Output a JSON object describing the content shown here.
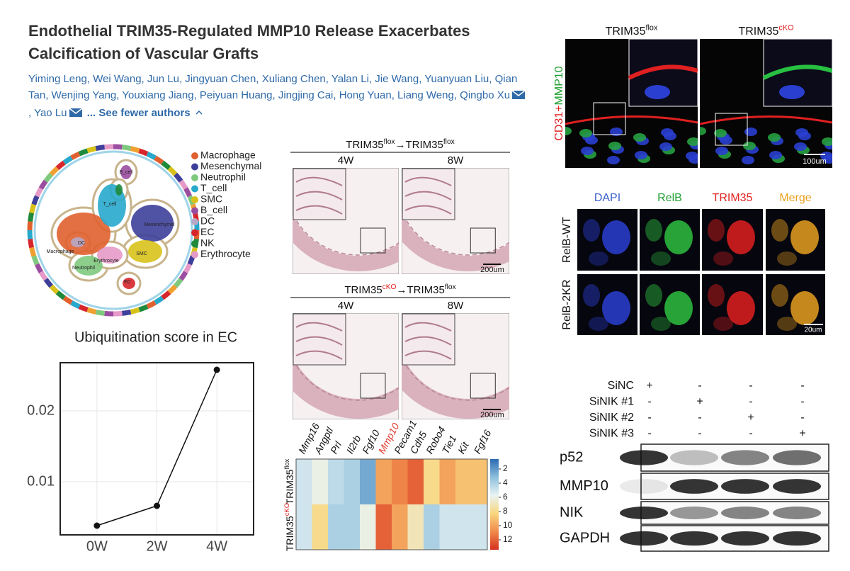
{
  "header": {
    "title": "Endothelial TRIM35-Regulated MMP10 Release Exacerbates Calcification of Vascular Grafts",
    "authors": [
      "Yiming Leng",
      "Wei Wang",
      "Jun Lu",
      "Jingyuan Chen",
      "Xuliang Chen",
      "Yalan Li",
      "Jie Wang",
      "Yuanyuan Liu",
      "Qian Tan",
      "Wenjing Yang",
      "Youxiang Jiang",
      "Peiyuan Huang",
      "Jingjing Cai",
      "Hong Yuan",
      "Liang Weng",
      "Qingbo Xu",
      "Yao Lu"
    ],
    "separator": ",",
    "toggle": "... See fewer authors"
  },
  "umap": {
    "legend": [
      {
        "label": "Macrophage",
        "color": "#e0612f"
      },
      {
        "label": "Mesenchymal",
        "color": "#3d3f9a"
      },
      {
        "label": "Neutrophil",
        "color": "#7fc97f"
      },
      {
        "label": "T_cell",
        "color": "#27a9cc"
      },
      {
        "label": "SMC",
        "color": "#d8c21a"
      },
      {
        "label": "B_cell",
        "color": "#9b4ea0"
      },
      {
        "label": "DC",
        "color": "#b8a8c8"
      },
      {
        "label": "EC",
        "color": "#d7262b"
      },
      {
        "label": "NK",
        "color": "#1f8a3c"
      },
      {
        "label": "Erythrocyte",
        "color": "#e59ac8"
      }
    ],
    "cluster_labels": [
      "T_cell",
      "B_cell",
      "Macrophage",
      "DC",
      "Mesenchymal",
      "Erythrocyte",
      "Neutrophil",
      "SMC",
      "EC"
    ]
  },
  "chart_data": [
    {
      "type": "line",
      "title": "Ubiquitination score in EC",
      "categories": [
        "0W",
        "2W",
        "4W"
      ],
      "values": [
        0.0038,
        0.0066,
        0.0258
      ],
      "ylim": [
        0.0025,
        0.0268
      ],
      "yticks": [
        0.01,
        0.02
      ],
      "grid": true,
      "color": "#111111"
    },
    {
      "type": "heatmap",
      "categories": [
        "Mmp16",
        "Angptl",
        "Prl",
        "Il2rb",
        "Fgf10",
        "Mmp10",
        "Pecam1",
        "Cdh5",
        "Robo4",
        "Tie1",
        "Kit",
        "Fgf16"
      ],
      "category_colors": [
        "#111111",
        "#111111",
        "#111111",
        "#111111",
        "#111111",
        "#e03a2e",
        "#111111",
        "#111111",
        "#111111",
        "#111111",
        "#111111",
        "#111111"
      ],
      "rows": [
        {
          "name_parts": [
            {
              "base": "TRIM35",
              "sup": "flox",
              "sup_color": "#111111"
            }
          ],
          "values": [
            5,
            6,
            4.5,
            4,
            2.5,
            10,
            11,
            12,
            8,
            10,
            9,
            9
          ]
        },
        {
          "name_parts": [
            {
              "base": "TRIM35",
              "sup": "cKO",
              "sup_color": "#e02020"
            }
          ],
          "values": [
            5,
            8,
            4,
            4,
            6,
            12,
            10,
            7,
            4,
            5,
            5,
            5
          ]
        }
      ],
      "clim": [
        0.6,
        13.4
      ],
      "ticks": [
        2,
        4,
        6,
        8,
        10,
        12
      ],
      "colorscale": [
        "#2c6bb3",
        "#8dbfdc",
        "#e9f3f2",
        "#f9d77e",
        "#f08a4b",
        "#d7301f"
      ]
    }
  ],
  "histology": {
    "groups": [
      {
        "heading": [
          {
            "base": "TRIM35",
            "sup": "flox",
            "sup_color": "#111111"
          },
          {
            "base": "→TRIM35",
            "sup": "flox",
            "sup_color": "#111111"
          }
        ]
      },
      {
        "heading": [
          {
            "base": "TRIM35",
            "sup": "cKO",
            "sup_color": "#e02020"
          },
          {
            "base": "→TRIM35",
            "sup": "flox",
            "sup_color": "#111111"
          }
        ]
      }
    ],
    "times": [
      "4W",
      "8W"
    ],
    "scale": "200um"
  },
  "if_top": {
    "columns": [
      [
        {
          "base": "TRIM35",
          "sup": "flox",
          "sup_color": "#111111"
        }
      ],
      [
        {
          "base": "TRIM35",
          "sup": "cKO",
          "sup_color": "#e02020"
        }
      ]
    ],
    "stain": [
      {
        "text": "CD31+",
        "color": "#e02020"
      },
      {
        "text": "MMP10",
        "color": "#1fa030"
      }
    ],
    "scale": "100um"
  },
  "if_bottom": {
    "columns": [
      {
        "text": "DAPI",
        "color": "#3a5fcd"
      },
      {
        "text": "RelB",
        "color": "#1fa030"
      },
      {
        "text": "TRIM35",
        "color": "#e02020"
      },
      {
        "text": "Merge",
        "color": "#e8a020"
      }
    ],
    "rows": [
      "RelB-WT",
      "RelB-2KR"
    ],
    "scale": "20um"
  },
  "western": {
    "conditions": [
      {
        "label": "SiNC",
        "signs": [
          "+",
          "-",
          "-",
          "-"
        ]
      },
      {
        "label": "SiNIK #1",
        "signs": [
          "-",
          "+",
          "-",
          "-"
        ]
      },
      {
        "label": "SiNIK #2",
        "signs": [
          "-",
          "-",
          "+",
          "-"
        ]
      },
      {
        "label": "SiNIK #3",
        "signs": [
          "-",
          "-",
          "-",
          "+"
        ]
      }
    ],
    "bands": [
      "p52",
      "MMP10",
      "NIK",
      "GAPDH"
    ]
  }
}
